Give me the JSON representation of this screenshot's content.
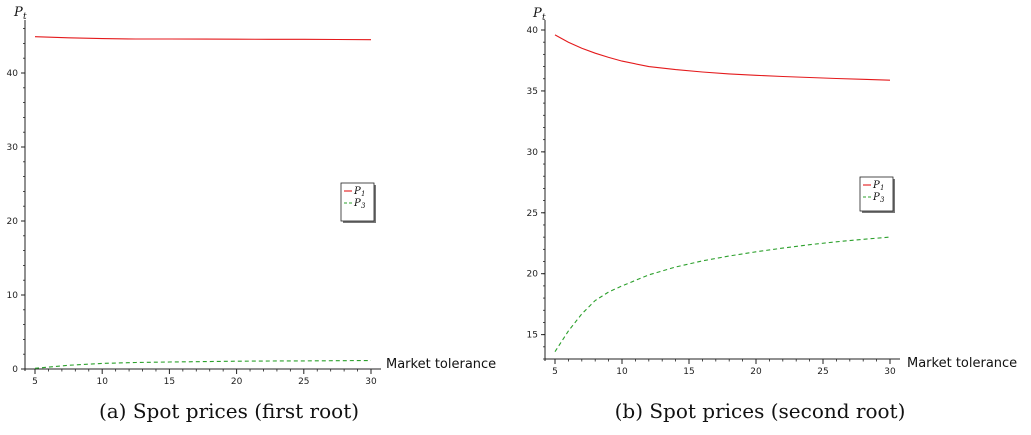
{
  "chart_data": [
    {
      "type": "line",
      "caption": "(a) Spot prices (first root)",
      "xlabel": "Market tolerance",
      "ylabel": "P",
      "ylabel_sub": "t",
      "xlim": [
        5,
        30
      ],
      "ylim": [
        0,
        45
      ],
      "xticks": [
        5,
        10,
        15,
        20,
        25,
        30
      ],
      "yticks": [
        0,
        10,
        20,
        30,
        40
      ],
      "legend_position": "right",
      "series": [
        {
          "name": "P",
          "sub": "1",
          "color": "#e41a1c",
          "dash": "solid",
          "x": [
            5,
            7.5,
            10,
            12.5,
            15,
            17.5,
            20,
            22.5,
            25,
            27.5,
            30
          ],
          "y": [
            44.9,
            44.75,
            44.65,
            44.6,
            44.6,
            44.58,
            44.57,
            44.56,
            44.55,
            44.53,
            44.5
          ]
        },
        {
          "name": "P",
          "sub": "3",
          "color": "#2ca02c",
          "dash": "dashed",
          "x": [
            5,
            7.5,
            10,
            12.5,
            15,
            17.5,
            20,
            22.5,
            25,
            27.5,
            30
          ],
          "y": [
            0.1,
            0.5,
            0.75,
            0.88,
            0.95,
            1.0,
            1.05,
            1.08,
            1.1,
            1.12,
            1.15
          ]
        }
      ]
    },
    {
      "type": "line",
      "caption": "(b) Spot prices (second root)",
      "xlabel": "Market tolerance",
      "ylabel": "P",
      "ylabel_sub": "t",
      "xlim": [
        5,
        30
      ],
      "ylim": [
        13,
        40
      ],
      "xticks": [
        5,
        10,
        15,
        20,
        25,
        30
      ],
      "yticks": [
        15,
        20,
        25,
        30,
        35,
        40
      ],
      "legend_position": "right",
      "series": [
        {
          "name": "P",
          "sub": "1",
          "color": "#e41a1c",
          "dash": "solid",
          "x": [
            5,
            6,
            7,
            8,
            9,
            10,
            12,
            14,
            16,
            18,
            20,
            22,
            24,
            26,
            28,
            30
          ],
          "y": [
            39.6,
            39.0,
            38.5,
            38.1,
            37.75,
            37.45,
            37.0,
            36.75,
            36.55,
            36.4,
            36.28,
            36.18,
            36.1,
            36.02,
            35.95,
            35.88
          ]
        },
        {
          "name": "P",
          "sub": "3",
          "color": "#2ca02c",
          "dash": "dashed",
          "x": [
            5,
            6,
            7,
            8,
            9,
            10,
            12,
            14,
            16,
            18,
            20,
            22,
            24,
            26,
            28,
            30
          ],
          "y": [
            13.6,
            15.3,
            16.7,
            17.8,
            18.5,
            19.0,
            19.9,
            20.55,
            21.05,
            21.45,
            21.8,
            22.1,
            22.38,
            22.62,
            22.82,
            23.0
          ]
        }
      ]
    }
  ]
}
